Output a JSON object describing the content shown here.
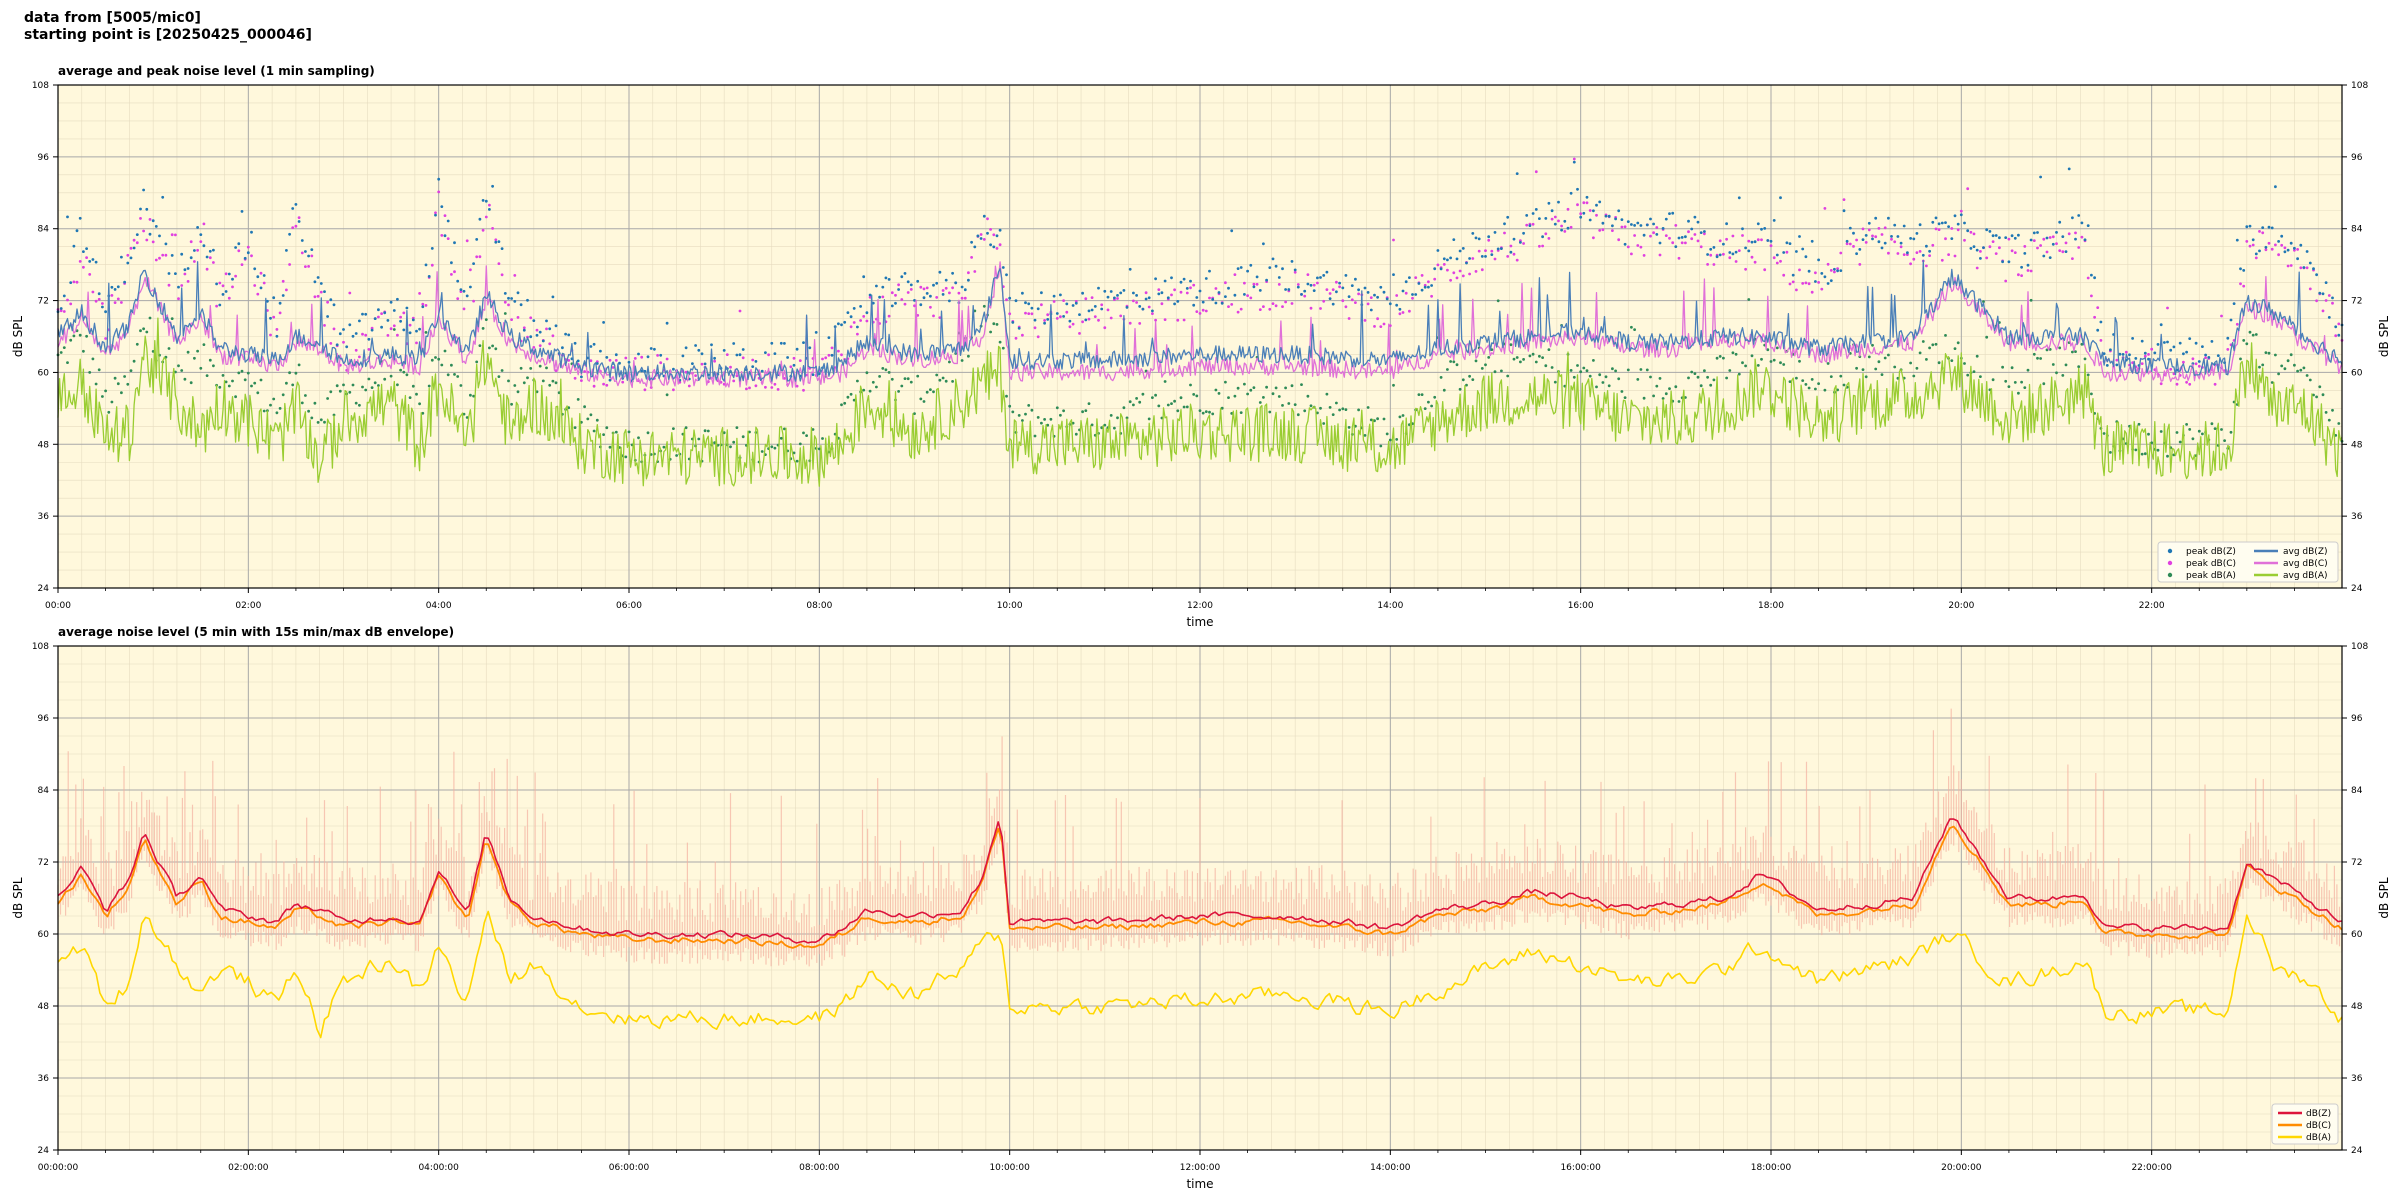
{
  "header": {
    "line1": "data from [5005/mic0]",
    "line2": "starting point is [20250425_000046]"
  },
  "colors": {
    "plot_background": "#fff8dc",
    "peak_z": "#1f77b4",
    "peak_c": "#e040e0",
    "peak_a": "#2e8b57",
    "avg_z": "#4a7fb8",
    "avg_c": "#e070d8",
    "avg_a": "#9acd32",
    "z5": "#dc143c",
    "c5": "#ff8c00",
    "a5": "#ffd700",
    "envelope": "#f4b0a0"
  },
  "chart_data": [
    {
      "type": "line",
      "title": "average and peak noise level (1 min sampling)",
      "xlabel": "time",
      "ylabel": "dB SPL",
      "ylim": [
        24,
        108
      ],
      "yticks": [
        "24",
        "36",
        "48",
        "60",
        "72",
        "84",
        "96",
        "108"
      ],
      "xlim_hours": [
        0,
        24
      ],
      "xticks": [
        "00:00",
        "02:00",
        "04:00",
        "06:00",
        "08:00",
        "10:00",
        "12:00",
        "14:00",
        "16:00",
        "18:00",
        "20:00",
        "22:00"
      ],
      "grid": true,
      "legend_position": "bottom-right",
      "legend": [
        "peak dB(Z)",
        "peak dB(C)",
        "peak dB(A)",
        "avg dB(Z)",
        "avg dB(C)",
        "avg dB(A)"
      ],
      "x_hours": [
        0,
        0.25,
        0.5,
        0.75,
        0.9,
        1.25,
        1.5,
        1.7,
        2.0,
        2.3,
        2.5,
        2.75,
        3.0,
        3.5,
        3.8,
        4.0,
        4.3,
        4.5,
        4.75,
        5.0,
        5.5,
        6.0,
        7.0,
        8.0,
        8.25,
        8.5,
        9.0,
        9.5,
        9.7,
        9.9,
        10.0,
        11.0,
        12.0,
        13.0,
        14.0,
        14.5,
        15.0,
        15.5,
        16.0,
        16.5,
        17.0,
        17.5,
        17.9,
        18.5,
        19.0,
        19.5,
        19.9,
        20.5,
        21.0,
        21.3,
        21.5,
        22.0,
        22.5,
        22.8,
        23.0,
        23.3,
        23.6,
        24.0
      ],
      "series": [
        {
          "name": "avg dB(Z)",
          "values": [
            66,
            70,
            64,
            68,
            77,
            66,
            70,
            64,
            63,
            62,
            66,
            65,
            62,
            63,
            62,
            70,
            63,
            73,
            66,
            64,
            61,
            60,
            60,
            60,
            62,
            65,
            63,
            64,
            67,
            78,
            62,
            62,
            63,
            63,
            62,
            64,
            65,
            66,
            67,
            65,
            65,
            66,
            66,
            64,
            65,
            66,
            76,
            66,
            66,
            66,
            62,
            61,
            61,
            61,
            72,
            70,
            66,
            62
          ]
        },
        {
          "name": "avg dB(C)",
          "values": [
            65,
            69,
            63,
            67,
            76,
            65,
            69,
            63,
            62,
            61,
            65,
            64,
            61,
            62,
            61,
            69,
            62,
            72,
            65,
            63,
            60,
            59,
            59,
            59,
            60,
            64,
            62,
            63,
            66,
            77,
            60,
            60,
            61,
            61,
            60,
            63,
            64,
            65,
            66,
            64,
            64,
            65,
            65,
            63,
            64,
            65,
            75,
            65,
            65,
            65,
            60,
            60,
            60,
            60,
            71,
            69,
            65,
            61
          ]
        },
        {
          "name": "avg dB(A)",
          "values": [
            55,
            58,
            49,
            50,
            63,
            55,
            50,
            55,
            52,
            48,
            54,
            45,
            52,
            55,
            48,
            58,
            48,
            63,
            50,
            55,
            48,
            46,
            46,
            46,
            48,
            55,
            50,
            55,
            58,
            60,
            48,
            48,
            50,
            50,
            47,
            52,
            55,
            56,
            55,
            52,
            52,
            54,
            58,
            52,
            55,
            56,
            60,
            52,
            55,
            57,
            47,
            47,
            47,
            47,
            62,
            54,
            54,
            46
          ]
        },
        {
          "name": "peak dB(Z)",
          "values": [
            70,
            84,
            70,
            80,
            88,
            75,
            86,
            74,
            82,
            68,
            88,
            74,
            65,
            70,
            68,
            90,
            70,
            90,
            72,
            68,
            62,
            61,
            62,
            62,
            66,
            72,
            74,
            74,
            85,
            83,
            70,
            72,
            74,
            76,
            72,
            78,
            82,
            84,
            88,
            84,
            84,
            82,
            82,
            76,
            84,
            82,
            84,
            80,
            82,
            84,
            63,
            63,
            63,
            63,
            82,
            84,
            80,
            68
          ]
        },
        {
          "name": "peak dB(C)",
          "values": [
            68,
            80,
            68,
            78,
            86,
            73,
            84,
            72,
            80,
            66,
            86,
            72,
            63,
            68,
            66,
            88,
            68,
            88,
            70,
            66,
            60,
            60,
            60,
            60,
            64,
            70,
            72,
            72,
            83,
            82,
            68,
            70,
            72,
            74,
            70,
            76,
            80,
            82,
            86,
            82,
            82,
            80,
            80,
            74,
            82,
            80,
            82,
            78,
            80,
            82,
            61,
            61,
            61,
            61,
            80,
            82,
            78,
            66
          ]
        },
        {
          "name": "peak dB(A)",
          "values": [
            62,
            66,
            55,
            58,
            68,
            60,
            62,
            60,
            58,
            54,
            60,
            52,
            56,
            60,
            54,
            64,
            54,
            68,
            56,
            60,
            52,
            48,
            48,
            48,
            52,
            60,
            56,
            62,
            70,
            66,
            52,
            52,
            56,
            56,
            50,
            58,
            62,
            62,
            60,
            58,
            58,
            60,
            64,
            58,
            62,
            62,
            64,
            58,
            62,
            62,
            49,
            49,
            49,
            49,
            66,
            60,
            60,
            50
          ]
        }
      ]
    },
    {
      "type": "line",
      "title": "average noise level (5 min with 15s min/max dB envelope)",
      "xlabel": "time",
      "ylabel": "dB SPL",
      "ylim": [
        24,
        108
      ],
      "yticks": [
        "24",
        "36",
        "48",
        "60",
        "72",
        "84",
        "96",
        "108"
      ],
      "xlim_hours": [
        0,
        24
      ],
      "xticks": [
        "00:00:00",
        "02:00:00",
        "04:00:00",
        "06:00:00",
        "08:00:00",
        "10:00:00",
        "12:00:00",
        "14:00:00",
        "16:00:00",
        "18:00:00",
        "20:00:00",
        "22:00:00"
      ],
      "grid": true,
      "legend_position": "bottom-right",
      "legend": [
        "dB(Z)",
        "dB(C)",
        "dB(A)"
      ],
      "x_hours": [
        0,
        0.25,
        0.5,
        0.75,
        0.9,
        1.25,
        1.5,
        1.7,
        2.0,
        2.3,
        2.5,
        2.75,
        3.0,
        3.5,
        3.8,
        4.0,
        4.3,
        4.5,
        4.75,
        5.0,
        5.5,
        6.0,
        7.0,
        8.0,
        8.25,
        8.5,
        9.0,
        9.5,
        9.7,
        9.9,
        10.0,
        11.0,
        12.0,
        13.0,
        14.0,
        14.5,
        15.0,
        15.5,
        16.0,
        16.5,
        17.0,
        17.5,
        17.9,
        18.5,
        19.0,
        19.5,
        19.9,
        20.5,
        21.0,
        21.3,
        21.5,
        22.0,
        22.5,
        22.8,
        23.0,
        23.3,
        23.6,
        24.0
      ],
      "series": [
        {
          "name": "dB(Z)",
          "values": [
            66,
            71,
            64,
            69,
            77,
            66,
            70,
            64,
            63,
            62,
            65,
            64,
            62,
            63,
            62,
            71,
            63,
            77,
            66,
            63,
            61,
            60,
            60,
            59,
            61,
            64,
            63,
            64,
            69,
            80,
            62,
            62,
            63,
            63,
            61,
            64,
            65,
            67,
            66,
            64,
            65,
            66,
            70,
            64,
            65,
            66,
            80,
            66,
            66,
            67,
            61,
            61,
            61,
            61,
            72,
            69,
            66,
            62
          ]
        },
        {
          "name": "dB(C)",
          "values": [
            65,
            70,
            63,
            68,
            76,
            65,
            69,
            63,
            62,
            61,
            64,
            63,
            61,
            62,
            61,
            70,
            62,
            76,
            65,
            62,
            60,
            59,
            59,
            58,
            60,
            63,
            62,
            63,
            68,
            79,
            61,
            61,
            62,
            62,
            60,
            63,
            64,
            66,
            65,
            63,
            64,
            65,
            69,
            63,
            64,
            65,
            79,
            65,
            65,
            66,
            60,
            60,
            60,
            60,
            71,
            68,
            65,
            61
          ]
        },
        {
          "name": "dB(A)",
          "values": [
            55,
            58,
            48,
            52,
            64,
            55,
            50,
            54,
            52,
            48,
            55,
            44,
            52,
            56,
            50,
            58,
            48,
            64,
            52,
            55,
            48,
            46,
            46,
            46,
            48,
            53,
            50,
            54,
            58,
            60,
            48,
            48,
            49,
            50,
            47,
            51,
            54,
            57,
            55,
            52,
            52,
            54,
            58,
            52,
            54,
            56,
            60,
            52,
            54,
            56,
            47,
            47,
            47,
            47,
            64,
            54,
            53,
            46
          ]
        }
      ]
    }
  ]
}
